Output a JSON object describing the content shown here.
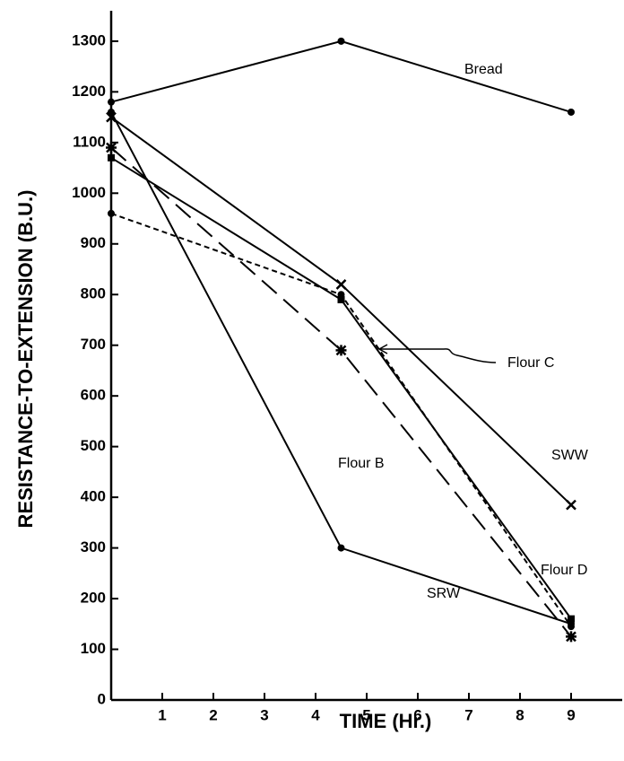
{
  "chart_data": {
    "type": "line",
    "x_label": "TIME (Hr.)",
    "y_label": "RESISTANCE-TO-EXTENSION (B.U.)",
    "xlim": [
      0,
      10
    ],
    "xticks": [
      1,
      2,
      3,
      4,
      5,
      6,
      7,
      8,
      9
    ],
    "ylim": [
      0,
      1360
    ],
    "yticks": [
      0,
      100,
      200,
      300,
      400,
      500,
      600,
      700,
      800,
      900,
      1000,
      1100,
      1200,
      1300
    ],
    "x": [
      0,
      4.5,
      9
    ],
    "series": [
      {
        "name": "Bread",
        "color": "#000000",
        "style": "solid",
        "marker": "circle",
        "values": [
          1180,
          1300,
          1160
        ]
      },
      {
        "name": "Flour C",
        "color": "#000000",
        "style": "solid",
        "marker": "square",
        "values": [
          1070,
          790,
          160
        ]
      },
      {
        "name": "Flour B",
        "color": "#000000",
        "style": "dashed",
        "marker": "star",
        "values": [
          1090,
          690,
          125
        ]
      },
      {
        "name": "SWW",
        "color": "#000000",
        "style": "solid",
        "marker": "x",
        "values": [
          1150,
          820,
          385
        ]
      },
      {
        "name": "Flour D",
        "color": "#000000",
        "style": "dotted",
        "marker": "circle",
        "values": [
          960,
          800,
          145
        ]
      },
      {
        "name": "SRW",
        "color": "#000000",
        "style": "solid",
        "marker": "circle",
        "values": [
          1160,
          300,
          150
        ]
      }
    ]
  }
}
